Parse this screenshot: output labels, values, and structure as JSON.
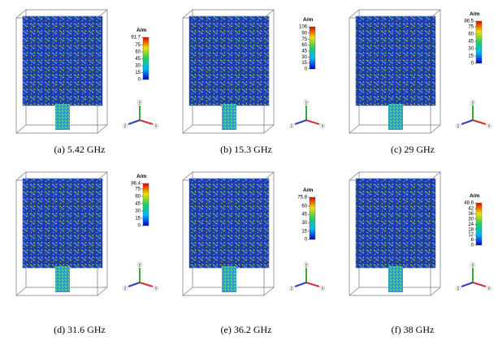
{
  "panels": [
    {
      "caption": "(a) 5.42 GHz",
      "unit": "A/m",
      "ticks": [
        91.7,
        75,
        60,
        45,
        30,
        15,
        0
      ],
      "axes": [
        "y",
        "z",
        "x"
      ]
    },
    {
      "caption": "(b) 15.3 GHz",
      "unit": "A/m",
      "ticks": [
        106,
        90,
        75,
        60,
        45,
        30,
        15,
        0
      ],
      "axes": [
        "y",
        "z",
        "x"
      ]
    },
    {
      "caption": "(c) 29 GHz",
      "unit": "A/m",
      "ticks": [
        86.5,
        75,
        60,
        45,
        30,
        15,
        0
      ],
      "axes": [
        "y",
        "z",
        "x"
      ]
    },
    {
      "caption": "(d) 31.6 GHz",
      "unit": "A/m",
      "ticks": [
        86.4,
        75,
        60,
        45,
        30,
        15,
        0
      ],
      "axes": [
        "y",
        "z",
        "x"
      ]
    },
    {
      "caption": "(e) 36.2 GHz",
      "unit": "A/m",
      "ticks": [
        75.8,
        60,
        45,
        30,
        15,
        0
      ],
      "axes": [
        "y",
        "z",
        "x"
      ]
    },
    {
      "caption": "(f) 38 GHz",
      "unit": "A/m",
      "ticks": [
        48.6,
        42,
        36,
        30,
        24,
        18,
        12,
        6,
        0
      ],
      "axes": [
        "y",
        "z",
        "x"
      ]
    }
  ]
}
